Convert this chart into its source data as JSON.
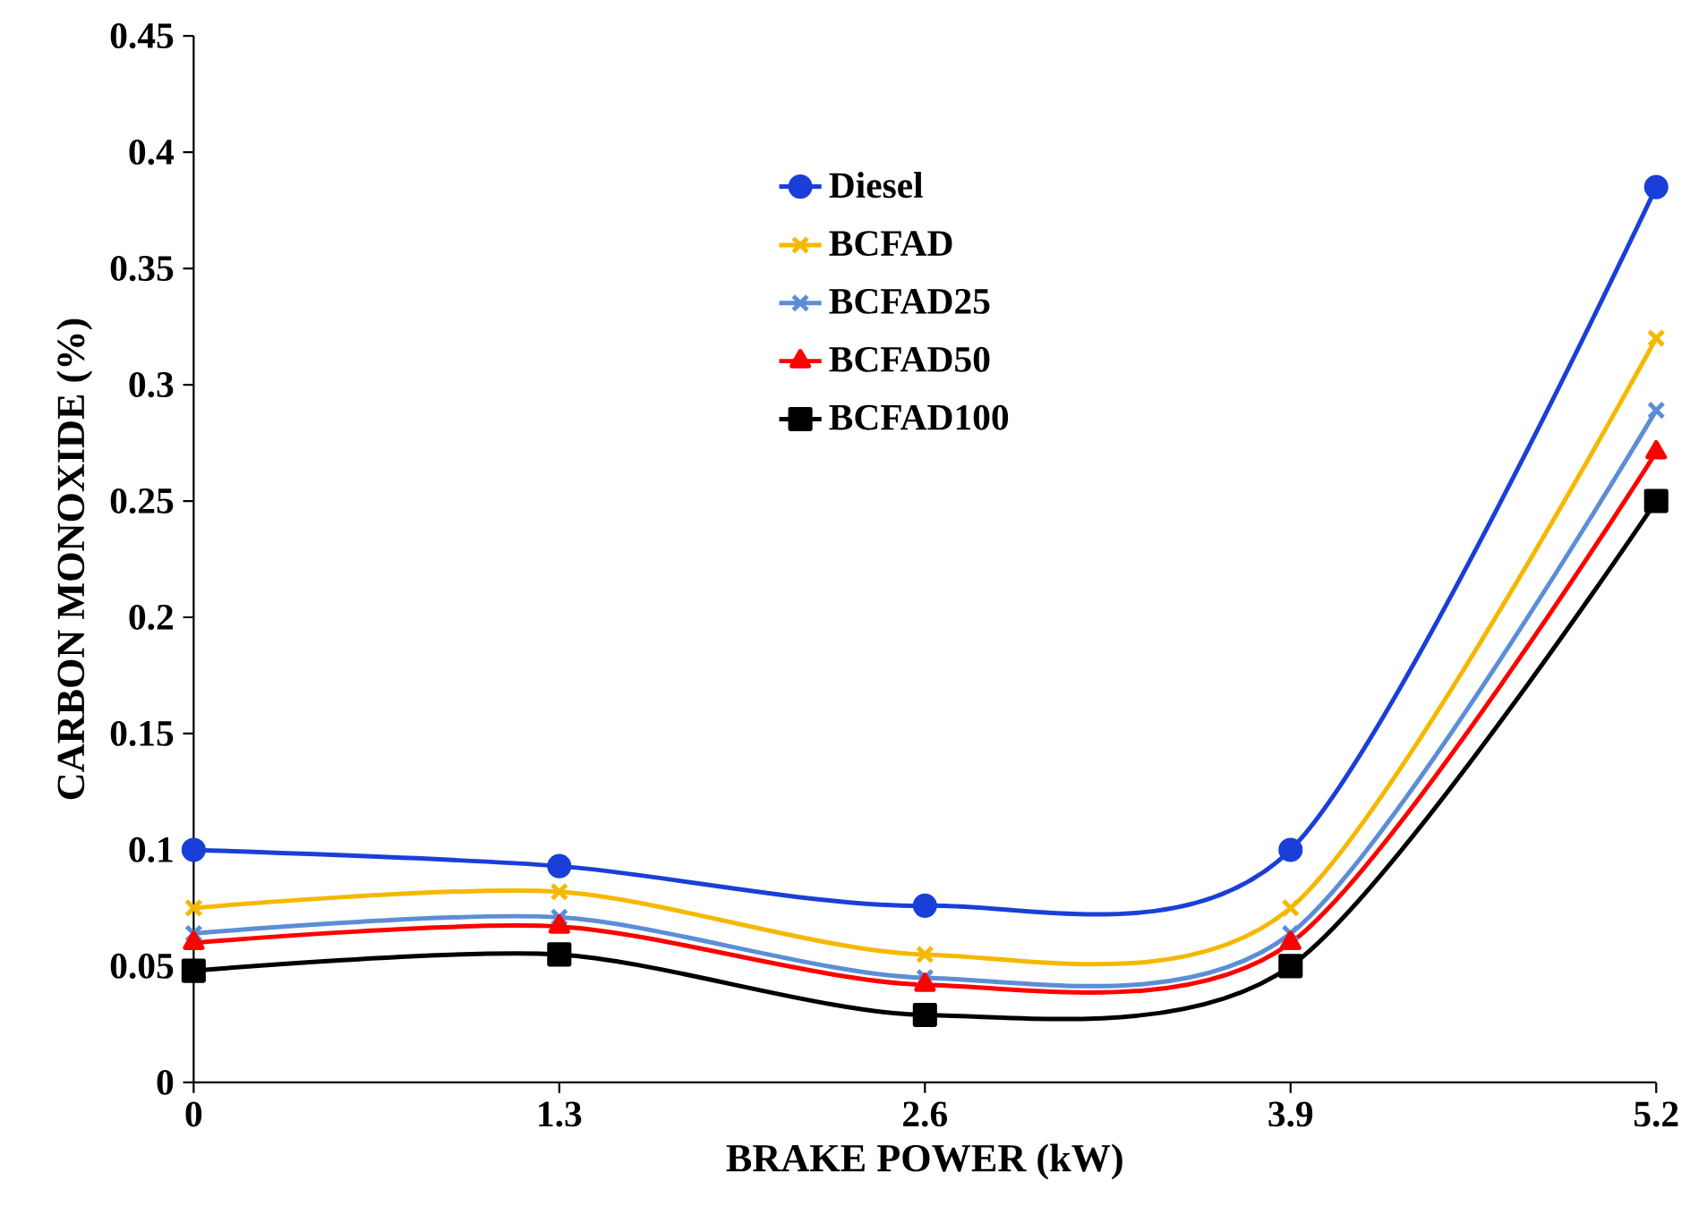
{
  "chart_data": {
    "type": "line",
    "xlabel": "BRAKE POWER (kW)",
    "ylabel": "CARBON MONOXIDE (%)",
    "x": [
      0,
      1.3,
      2.6,
      3.9,
      5.2
    ],
    "series": [
      {
        "name": "Diesel",
        "color": "#1a3fd8",
        "marker": "circle",
        "values": [
          0.1,
          0.093,
          0.076,
          0.1,
          0.385
        ]
      },
      {
        "name": "BCFAD",
        "color": "#f5b800",
        "marker": "cross",
        "values": [
          0.075,
          0.082,
          0.055,
          0.075,
          0.32
        ]
      },
      {
        "name": "BCFAD25",
        "color": "#5b8ed6",
        "marker": "cross",
        "values": [
          0.064,
          0.071,
          0.045,
          0.064,
          0.289
        ]
      },
      {
        "name": "BCFAD50",
        "color": "#ff0000",
        "marker": "triangle",
        "values": [
          0.06,
          0.067,
          0.042,
          0.06,
          0.271
        ]
      },
      {
        "name": "BCFAD100",
        "color": "#000000",
        "marker": "square",
        "values": [
          0.048,
          0.055,
          0.029,
          0.05,
          0.25
        ]
      }
    ],
    "xlim": [
      0,
      5.2
    ],
    "xticks": [
      0,
      1.3,
      2.6,
      3.9,
      5.2
    ],
    "ylim": [
      0,
      0.45
    ],
    "yticks": [
      0,
      0.05,
      0.1,
      0.15,
      0.2,
      0.25,
      0.3,
      0.35,
      0.4,
      0.45
    ],
    "grid": false,
    "legend": "top",
    "line_style": "solid"
  }
}
